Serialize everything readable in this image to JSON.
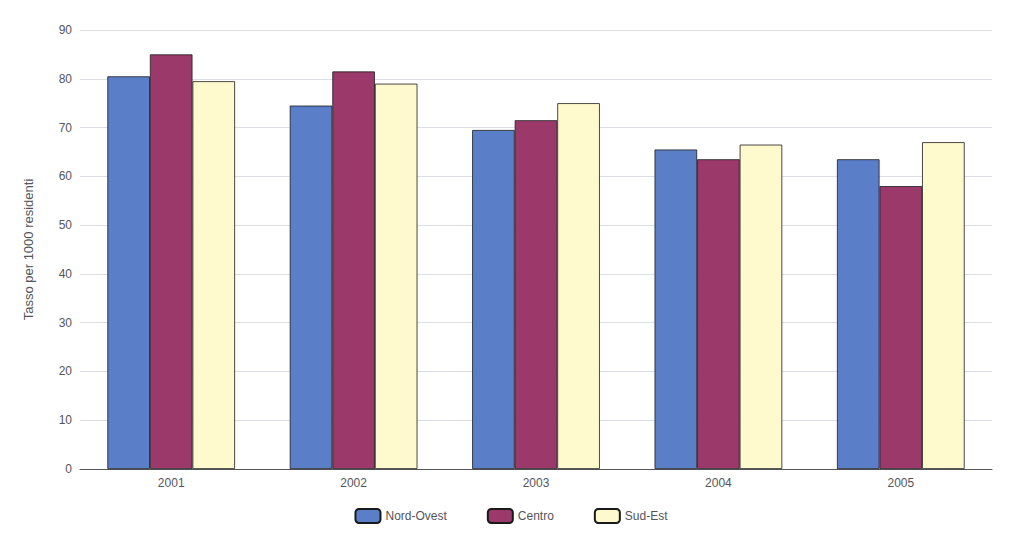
{
  "chart_data": {
    "type": "bar",
    "categories": [
      "2001",
      "2002",
      "2003",
      "2004",
      "2005"
    ],
    "series": [
      {
        "name": "Nord-Ovest",
        "color": "#5B7EC9",
        "values": [
          80.5,
          74.5,
          69.5,
          65.5,
          63.5
        ]
      },
      {
        "name": "Centro",
        "color": "#9B3A6A",
        "values": [
          85.0,
          81.5,
          71.5,
          63.5,
          58.0
        ]
      },
      {
        "name": "Sud-Est",
        "color": "#FFFACD",
        "values": [
          79.5,
          79.0,
          75.0,
          66.5,
          67.0
        ]
      }
    ],
    "ylabel": "Tasso per 1000 residenti",
    "ylim": [
      0,
      90
    ],
    "yticks": [
      0,
      10,
      20,
      30,
      40,
      50,
      60,
      70,
      80,
      90
    ],
    "grid": true,
    "legend": "bottom"
  }
}
